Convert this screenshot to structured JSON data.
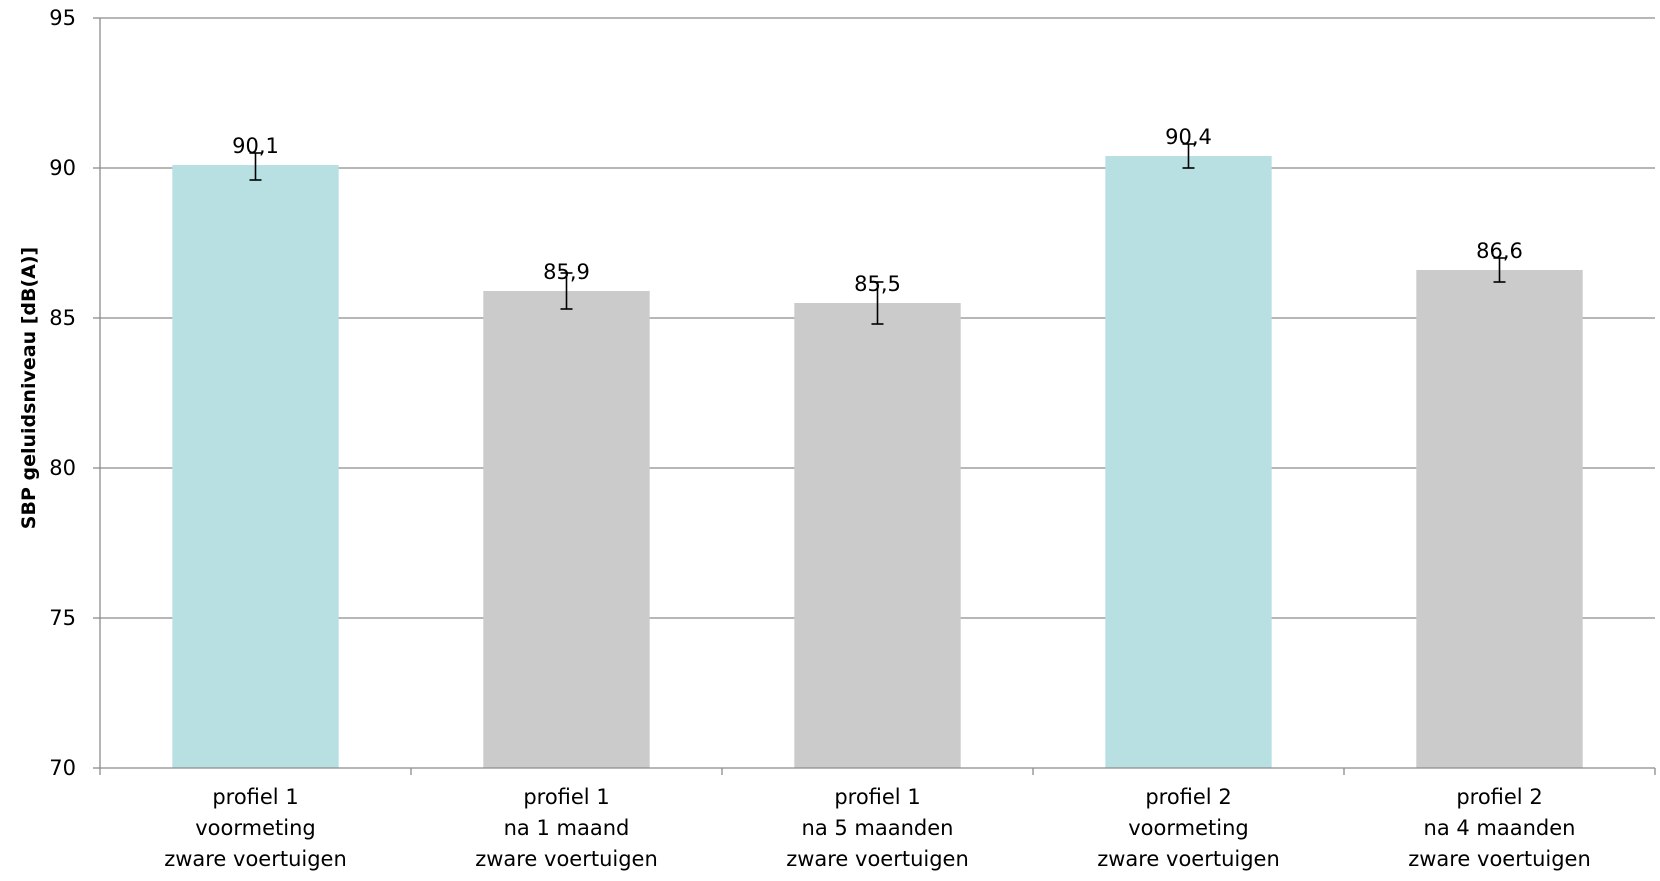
{
  "chart_data": {
    "type": "bar",
    "title": "",
    "xlabel": "",
    "ylabel": "SBP geluidsniveau [dB(A)]",
    "ylim": [
      70,
      95
    ],
    "yticks": [
      70,
      75,
      80,
      85,
      90,
      95
    ],
    "grid": true,
    "legend": "none",
    "categories": [
      [
        "profiel 1",
        "voormeting",
        "zware voertuigen"
      ],
      [
        "profiel 1",
        "na 1 maand",
        "zware voertuigen"
      ],
      [
        "profiel 1",
        "na 5 maanden",
        "zware voertuigen"
      ],
      [
        "profiel 2",
        "voormeting",
        "zware voertuigen"
      ],
      [
        "profiel 2",
        "na 4 maanden",
        "zware voertuigen"
      ]
    ],
    "values": [
      90.1,
      85.9,
      85.5,
      90.4,
      86.6
    ],
    "value_labels": [
      "90,1",
      "85,9",
      "85,5",
      "90,4",
      "86,6"
    ],
    "error_bars": [
      [
        89.6,
        90.5
      ],
      [
        85.3,
        86.5
      ],
      [
        84.8,
        86.2
      ],
      [
        90.0,
        90.8
      ],
      [
        86.2,
        87.0
      ]
    ],
    "bar_colors": [
      "#b8e0e3",
      "#cbcbcb",
      "#cbcbcb",
      "#b8e0e3",
      "#cbcbcb"
    ],
    "colors": {
      "axis": "#8c8c8c",
      "grid": "#8c8c8c",
      "error_bar": "#000000"
    }
  }
}
